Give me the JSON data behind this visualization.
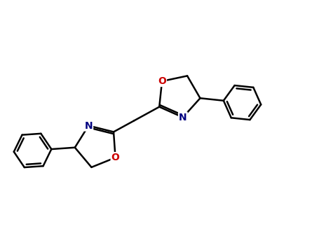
{
  "bg_color": "#ffffff",
  "bond_color": "#000000",
  "N_color": "#000080",
  "O_color": "#cc0000",
  "figsize": [
    4.55,
    3.5
  ],
  "dpi": 100,
  "line_width": 1.8,
  "font_size": 10,
  "xlim": [
    0,
    10
  ],
  "ylim": [
    0,
    7.7
  ]
}
